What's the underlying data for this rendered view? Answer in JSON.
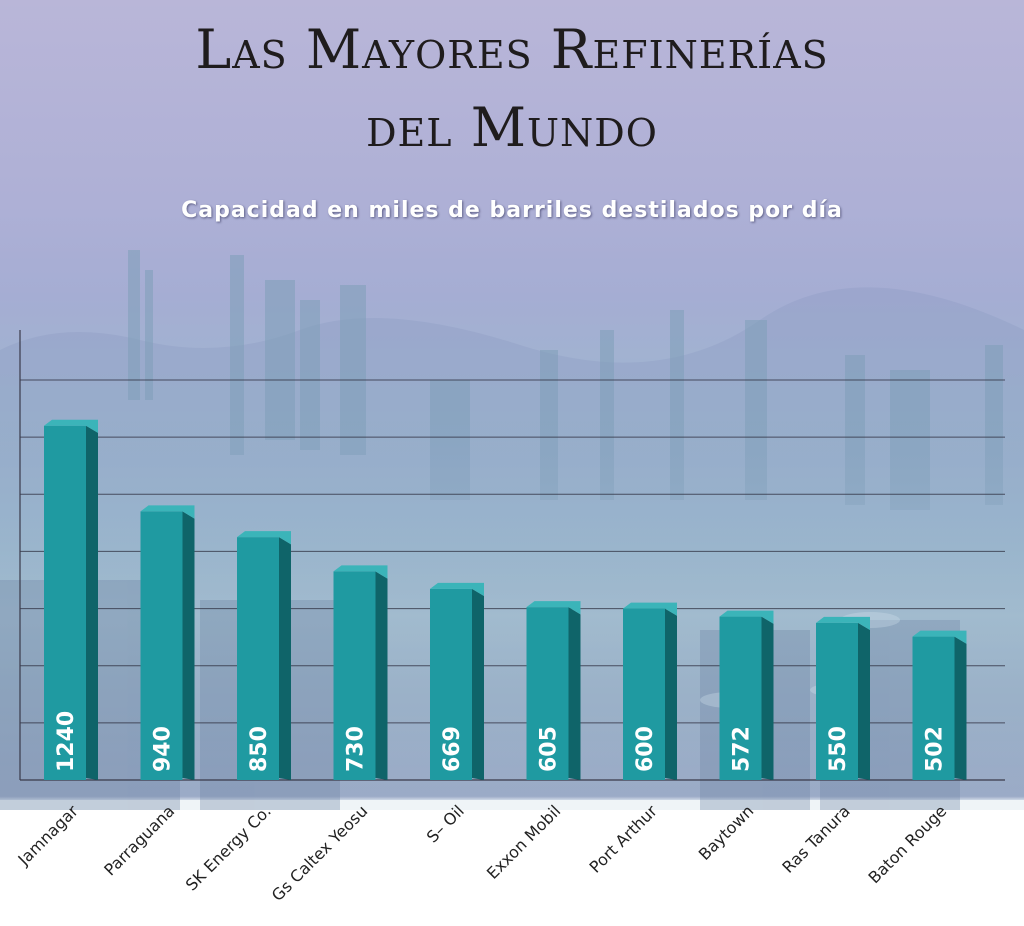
{
  "chart_data": {
    "type": "bar",
    "title_line1": "Las Mayores Refinerías",
    "title_line2": "del Mundo",
    "subtitle": "Capacidad en miles de barriles destilados por día",
    "categories": [
      "Jamnagar",
      "Parraguana",
      "SK Energy Co.",
      "Gs Caltex Yeosu",
      "S– Oil",
      "Exxon Mobil",
      "Port Arthur",
      "Baytown",
      "Ras Tanura",
      "Baton Rouge"
    ],
    "values": [
      1240,
      940,
      850,
      730,
      669,
      605,
      600,
      572,
      550,
      502
    ],
    "ylim": [
      0,
      1400
    ],
    "grid": true,
    "legend": "none"
  },
  "colors": {
    "bar_front": "#1f9aa1",
    "bar_side": "#0f6469",
    "bar_top": "#3bb4b9",
    "gridline": "#2a2a3a",
    "value_label": "#ffffff"
  }
}
